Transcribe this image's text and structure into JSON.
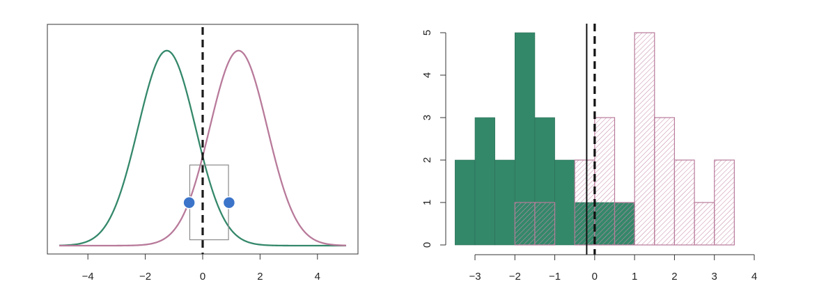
{
  "colors": {
    "green": "#34886a",
    "pink": "#b87a9a",
    "hatch": "#c88eac",
    "marker": "#3b74c9",
    "axis": "#333333"
  },
  "chart_data": [
    {
      "type": "line",
      "title": "",
      "xlabel": "",
      "ylabel": "",
      "xlim": [
        -5,
        5
      ],
      "ylim": [
        0,
        0.42
      ],
      "xticks": [
        -4,
        -2,
        0,
        2,
        4
      ],
      "xtick_labels": [
        "−4",
        "−2",
        "0",
        "2",
        "4"
      ],
      "y_axis_shown": false,
      "series": [
        {
          "color": "green",
          "distribution": "normal",
          "mean": -1.25,
          "sd": 1.0
        },
        {
          "color": "pink",
          "distribution": "normal",
          "mean": 1.25,
          "sd": 1.0
        }
      ],
      "decision_boundary": {
        "x": 0,
        "style": "dashed"
      },
      "highlight_box": {
        "x": [
          -0.45,
          0.9
        ],
        "y": [
          0.012,
          0.165
        ]
      },
      "points": [
        {
          "x": -0.47,
          "y": 0.088
        },
        {
          "x": 0.92,
          "y": 0.088
        }
      ]
    },
    {
      "type": "bar",
      "title": "",
      "xlabel": "",
      "ylabel": "",
      "xlim": [
        -3.5,
        4
      ],
      "ylim": [
        0,
        5
      ],
      "xticks": [
        -3,
        -2,
        -1,
        0,
        1,
        2,
        3,
        4
      ],
      "xtick_labels": [
        "−3",
        "−2",
        "−1",
        "0",
        "1",
        "2",
        "3",
        "4"
      ],
      "yticks": [
        0,
        1,
        2,
        3,
        4,
        5
      ],
      "ytick_labels": [
        "0",
        "1",
        "2",
        "3",
        "4",
        "5"
      ],
      "bin_width": 0.5,
      "series": [
        {
          "color": "green",
          "fill": "solid",
          "bins": [
            {
              "start": -3.5,
              "count": 2
            },
            {
              "start": -3.0,
              "count": 3
            },
            {
              "start": -2.5,
              "count": 2
            },
            {
              "start": -2.0,
              "count": 5
            },
            {
              "start": -1.5,
              "count": 3
            },
            {
              "start": -1.0,
              "count": 2
            },
            {
              "start": -0.5,
              "count": 1
            },
            {
              "start": 0.0,
              "count": 1
            },
            {
              "start": 0.5,
              "count": 1
            }
          ]
        },
        {
          "color": "pink",
          "fill": "hatched",
          "bins": [
            {
              "start": -2.0,
              "count": 1
            },
            {
              "start": -1.5,
              "count": 1
            },
            {
              "start": -0.5,
              "count": 2
            },
            {
              "start": 0.0,
              "count": 3
            },
            {
              "start": 0.5,
              "count": 1
            },
            {
              "start": 1.0,
              "count": 5
            },
            {
              "start": 1.5,
              "count": 3
            },
            {
              "start": 2.0,
              "count": 2
            },
            {
              "start": 2.5,
              "count": 1
            },
            {
              "start": 3.0,
              "count": 2
            }
          ]
        }
      ],
      "vertical_lines": [
        {
          "x": -0.2,
          "style": "solid"
        },
        {
          "x": 0,
          "style": "dashed"
        }
      ]
    }
  ]
}
